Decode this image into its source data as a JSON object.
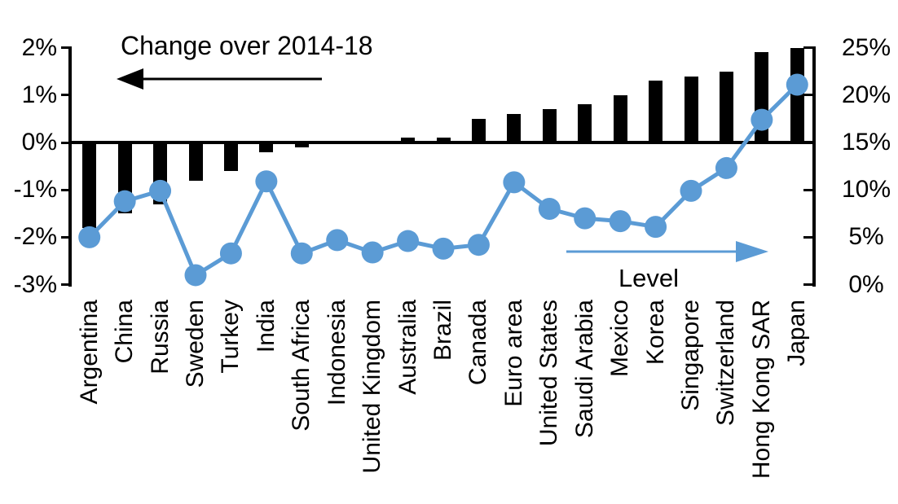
{
  "chart_data": {
    "type": "bar",
    "subtype": "combo_bar_line_dual_axis",
    "grid": false,
    "legend_position": "in-plot annotations with direction arrows",
    "categories": [
      "Argentina",
      "China",
      "Russia",
      "Sweden",
      "Turkey",
      "India",
      "South Africa",
      "Indonesia",
      "United Kingdom",
      "Australia",
      "Brazil",
      "Canada",
      "Euro area",
      "United States",
      "Saudi Arabia",
      "Mexico",
      "Korea",
      "Singapore",
      "Switzerland",
      "Hong Kong SAR",
      "Japan"
    ],
    "series": [
      {
        "name": "Change over 2014-18",
        "type": "bar",
        "axis": "left",
        "color": "#000000",
        "unit": "%",
        "values": [
          -1.8,
          -1.5,
          -1.3,
          -0.8,
          -0.6,
          -0.2,
          -0.1,
          0,
          0,
          0.1,
          0.1,
          0.5,
          0.6,
          0.7,
          0.8,
          1.0,
          1.3,
          1.4,
          1.5,
          1.9,
          2.0
        ]
      },
      {
        "name": "Level",
        "type": "line",
        "axis": "right",
        "color": "#5B9BD5",
        "unit": "%",
        "values": [
          5.0,
          8.8,
          9.9,
          1.0,
          3.3,
          10.9,
          3.3,
          4.7,
          3.4,
          4.6,
          3.8,
          4.2,
          10.8,
          8.0,
          7.0,
          6.7,
          6.1,
          9.9,
          12.3,
          17.4,
          21.1
        ]
      }
    ],
    "left_axis": {
      "min": -3,
      "max": 2,
      "tick_labels": [
        "2%",
        "1%",
        "0%",
        "-1%",
        "-2%",
        "-3%"
      ]
    },
    "right_axis": {
      "min": 0,
      "max": 25,
      "tick_labels": [
        "25%",
        "20%",
        "15%",
        "10%",
        "5%",
        "0%"
      ]
    }
  }
}
